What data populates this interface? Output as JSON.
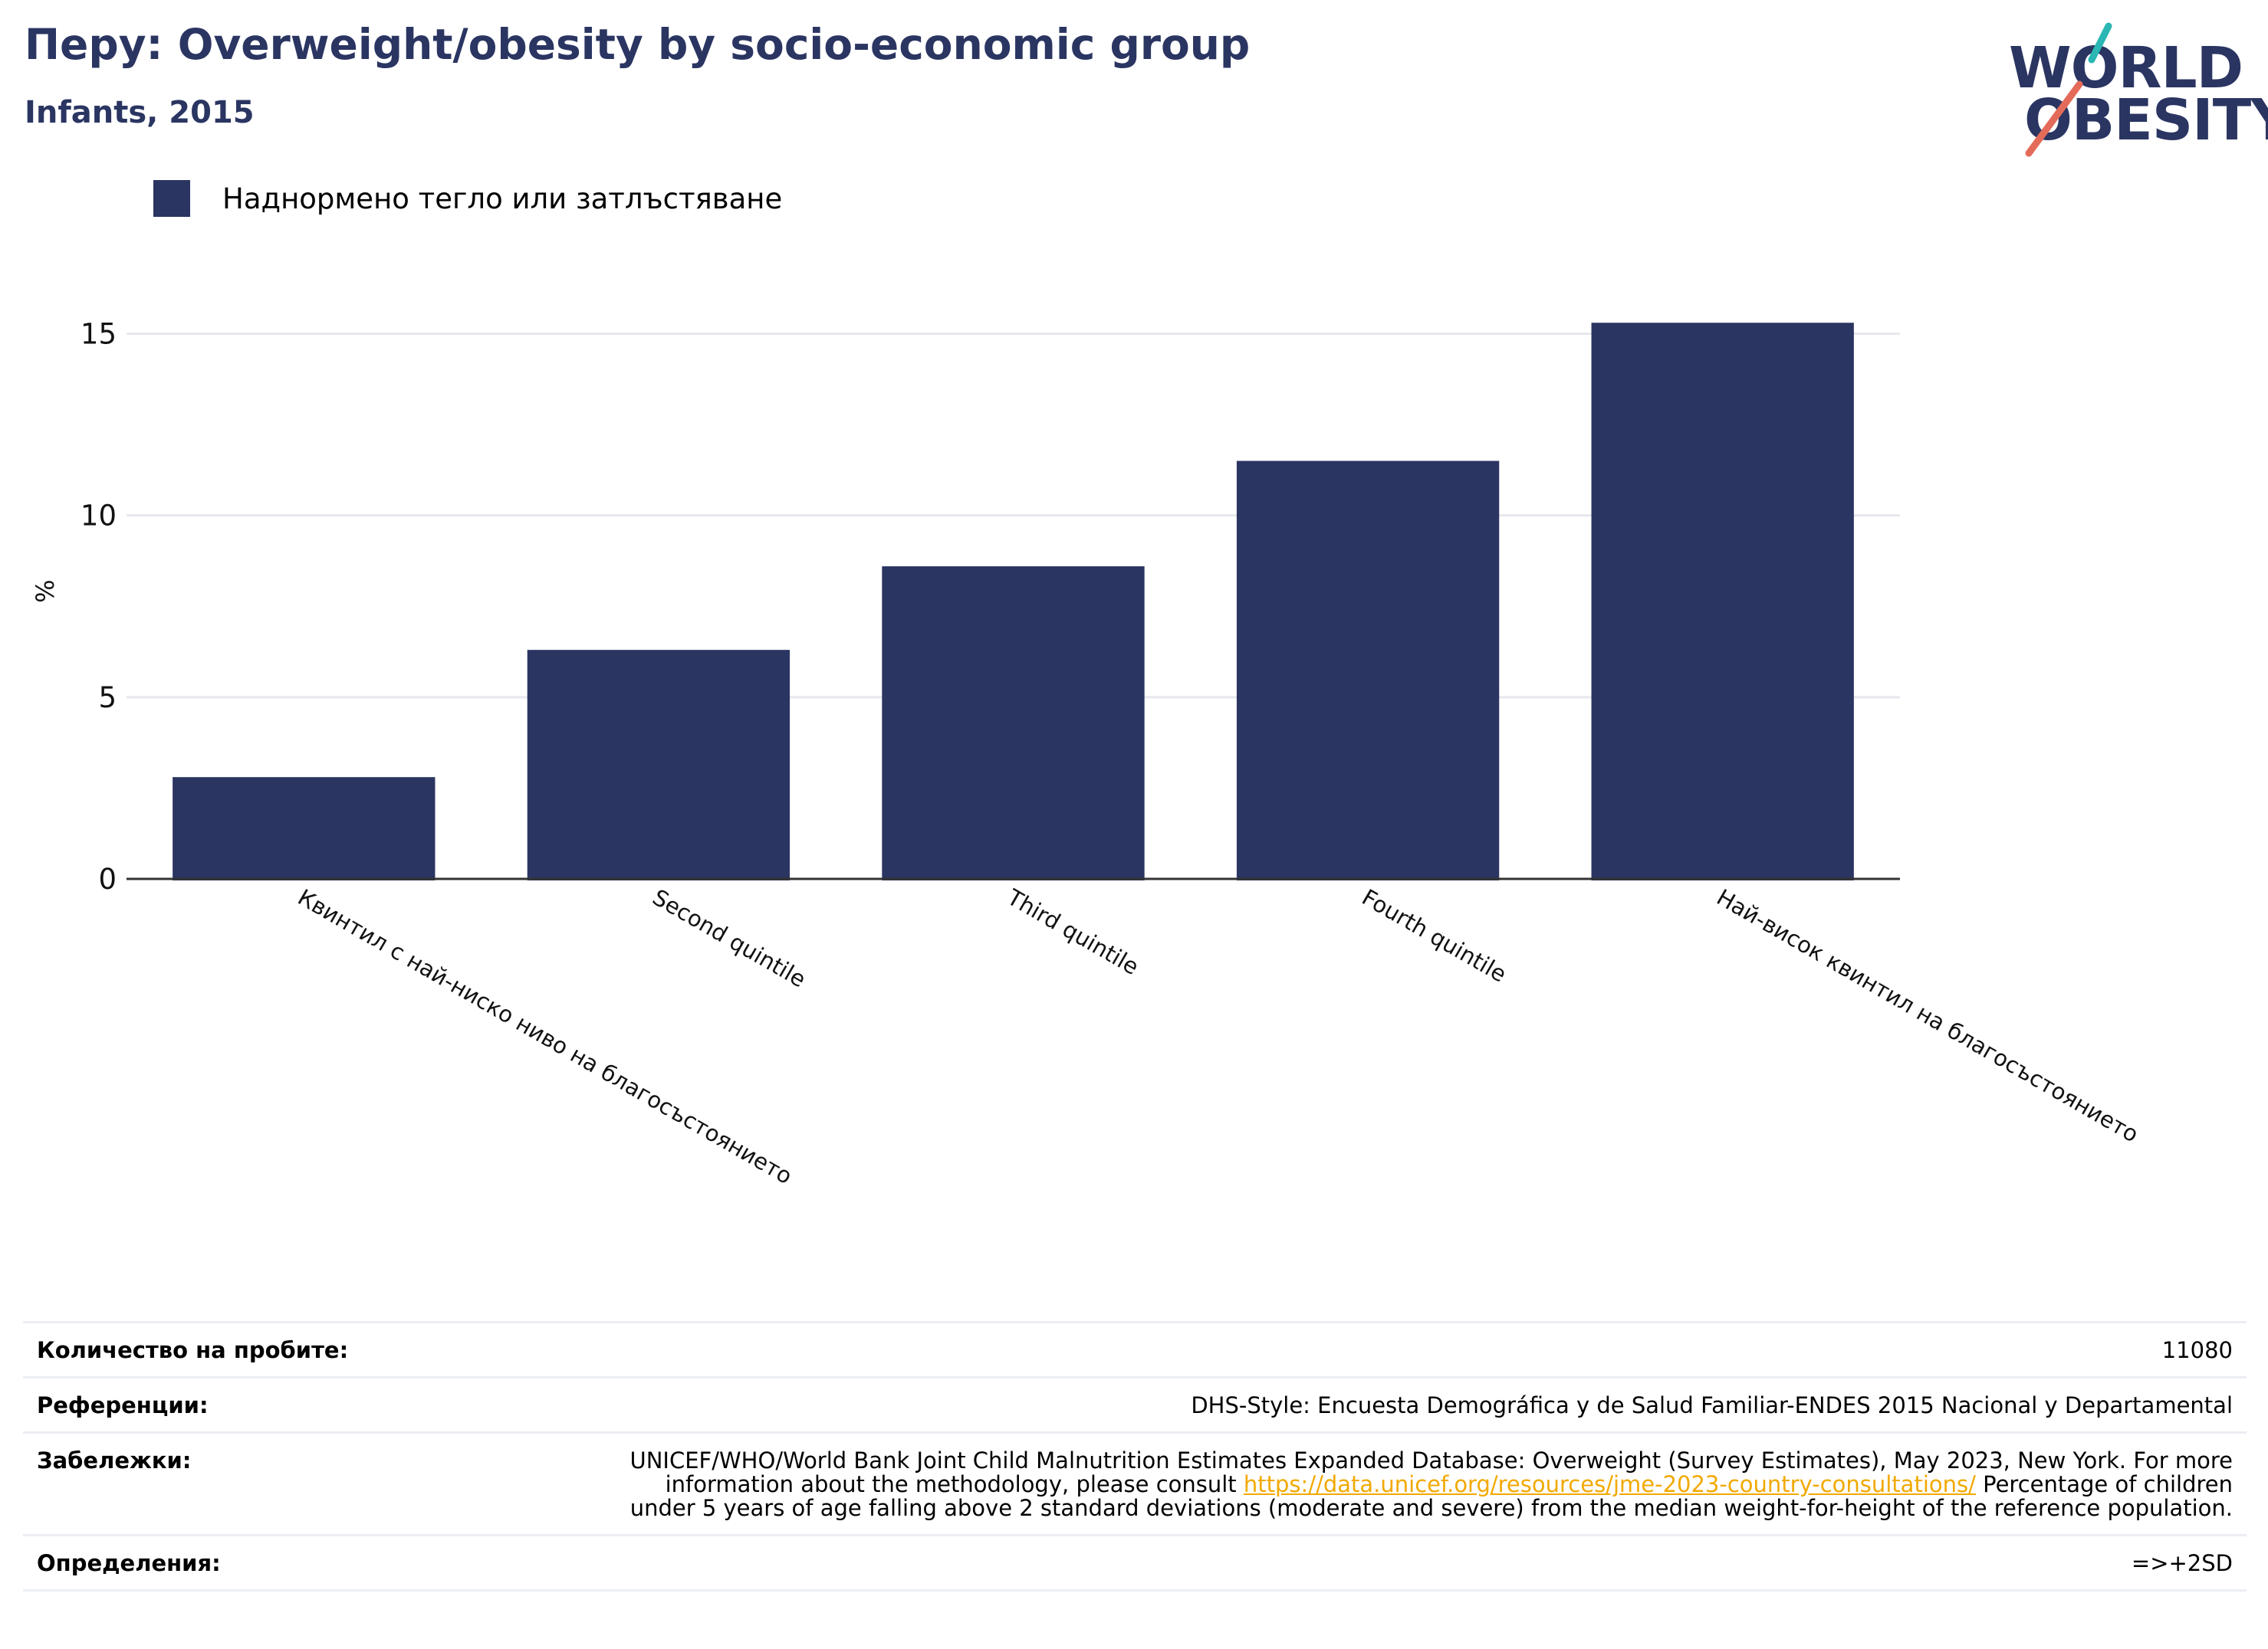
{
  "header": {
    "title": "Перу: Overweight/obesity by socio-economic group",
    "subtitle": "Infants, 2015"
  },
  "logo": {
    "line1": "WORLD",
    "line2": "OBESITY",
    "colors": {
      "text": "#2a3562",
      "teal": "#2bb7b3",
      "coral": "#e46b5a"
    }
  },
  "legend": {
    "label": "Наднормено тегло или затлъстяване",
    "color": "#2a3562"
  },
  "chart_data": {
    "type": "bar",
    "categories": [
      "Квинтил с най-ниско ниво на благосъстоянието",
      "Second quintile",
      "Third quintile",
      "Fourth quintile",
      "Най-висок квинтил на благосъстоянието"
    ],
    "series": [
      {
        "name": "Наднормено тегло или затлъстяване",
        "values": [
          2.8,
          6.3,
          8.6,
          11.5,
          15.3
        ],
        "color": "#2a3562"
      }
    ],
    "ylabel": "%",
    "xlabel": "",
    "ylim": [
      0,
      16
    ],
    "yticks": [
      0,
      5,
      10,
      15
    ],
    "grid": true,
    "legend_position": "top-left"
  },
  "info": {
    "sample_label": "Количество на пробите:",
    "sample_value": "11080",
    "references_label": "Референции:",
    "references_value": "DHS-Style: Encuesta Demográfica y de Salud Familiar-ENDES 2015 Nacional y Departamental",
    "notes_label": "Забележки:",
    "notes_text_1": "UNICEF/WHO/World Bank Joint Child Malnutrition Estimates Expanded Database: Overweight (Survey Estimates), May 2023, New York. For more information about the methodology, please consult ",
    "notes_link": "https://data.unicef.org/resources/jme-2023-country-consultations/",
    "notes_text_2": " Percentage of children under 5 years of age falling above 2 standard deviations (moderate and severe) from the median weight-for-height of the reference population.",
    "definitions_label": "Определения:",
    "definitions_value": "=>+2SD"
  }
}
